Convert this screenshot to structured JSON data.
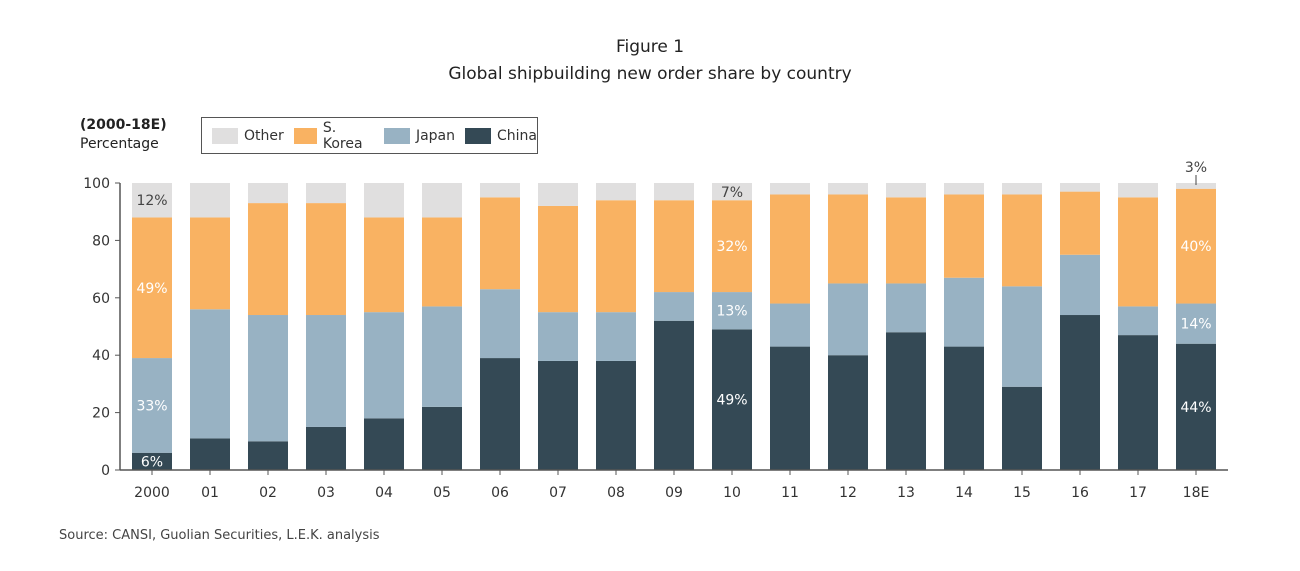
{
  "chart_data": {
    "type": "bar",
    "stacked": true,
    "title": "Figure 1",
    "subtitle": "Global shipbuilding new order share by country",
    "ylabel_lines": [
      "(2000-18E)",
      "Percentage"
    ],
    "xlabel": "",
    "ylim": [
      0,
      100
    ],
    "yticks": [
      "0",
      "20",
      "40",
      "60",
      "80",
      "100"
    ],
    "grid": false,
    "legend_position": "top-left",
    "categories": [
      "2000",
      "01",
      "02",
      "03",
      "04",
      "05",
      "06",
      "07",
      "08",
      "09",
      "10",
      "11",
      "12",
      "13",
      "14",
      "15",
      "16",
      "17",
      "18E"
    ],
    "series": [
      {
        "name": "China",
        "color": "#344955",
        "values": [
          6,
          11,
          10,
          15,
          18,
          22,
          39,
          38,
          38,
          52,
          49,
          43,
          40,
          48,
          43,
          29,
          54,
          47,
          44
        ],
        "labels": [
          "6%",
          "",
          "",
          "",
          "",
          "",
          "",
          "",
          "",
          "",
          "49%",
          "",
          "",
          "",
          "",
          "",
          "",
          "",
          "44%"
        ]
      },
      {
        "name": "Japan",
        "color": "#98b2c3",
        "values": [
          33,
          45,
          44,
          39,
          37,
          35,
          24,
          17,
          17,
          10,
          13,
          15,
          25,
          17,
          24,
          35,
          21,
          10,
          14
        ],
        "labels": [
          "33%",
          "",
          "",
          "",
          "",
          "",
          "",
          "",
          "",
          "",
          "13%",
          "",
          "",
          "",
          "",
          "",
          "",
          "",
          "14%"
        ]
      },
      {
        "name": "S. Korea",
        "color": "#f9b262",
        "values": [
          49,
          32,
          39,
          39,
          33,
          31,
          32,
          37,
          39,
          32,
          32,
          38,
          31,
          30,
          29,
          32,
          22,
          38,
          40
        ],
        "labels": [
          "49%",
          "",
          "",
          "",
          "",
          "",
          "",
          "",
          "",
          "",
          "32%",
          "",
          "",
          "",
          "",
          "",
          "",
          "",
          "40%"
        ]
      },
      {
        "name": "Other",
        "color": "#e0dfdf",
        "values": [
          12,
          12,
          7,
          7,
          12,
          12,
          5,
          8,
          6,
          6,
          7,
          4,
          4,
          5,
          4,
          4,
          3,
          5,
          3
        ],
        "labels": [
          "12%",
          "",
          "",
          "",
          "",
          "",
          "",
          "",
          "",
          "",
          "7%",
          "",
          "",
          "",
          "",
          "",
          "",
          "",
          "3%"
        ]
      }
    ],
    "legend_order": [
      "Other",
      "S. Korea",
      "Japan",
      "China"
    ],
    "source": "Source: CANSI, Guolian Securities, L.E.K. analysis"
  }
}
